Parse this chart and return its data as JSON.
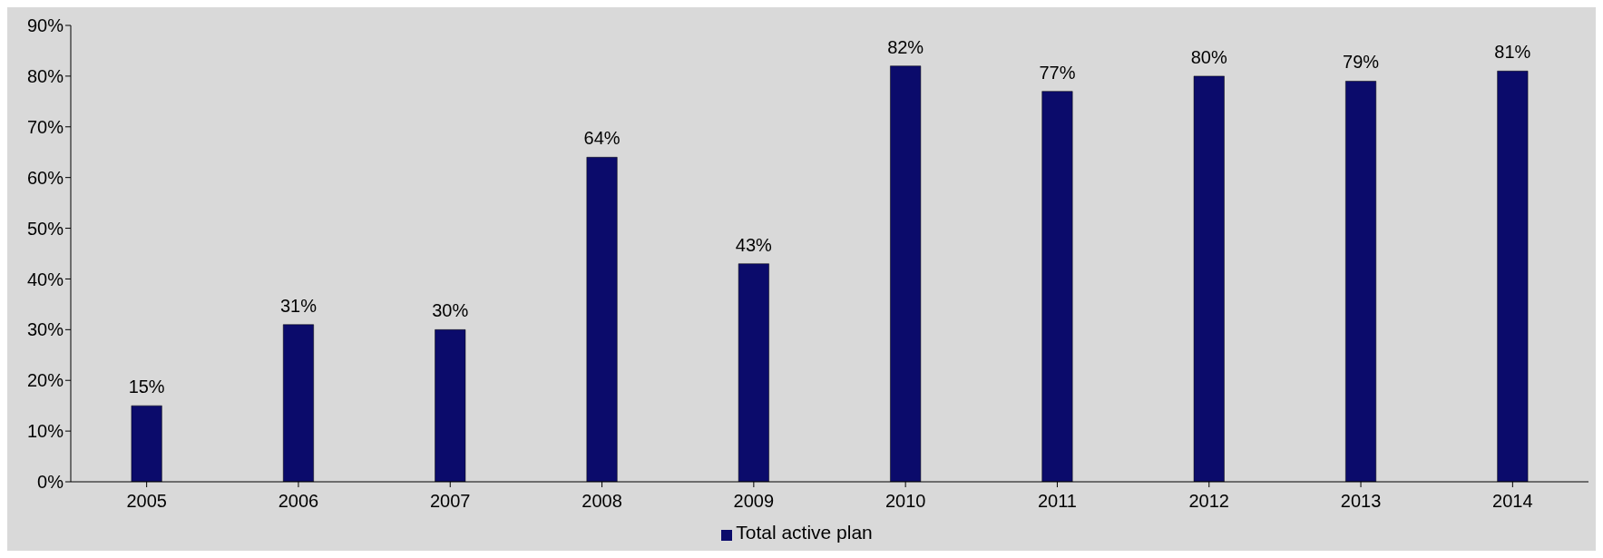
{
  "chart_data": {
    "type": "bar",
    "categories": [
      "2005",
      "2006",
      "2007",
      "2008",
      "2009",
      "2010",
      "2011",
      "2012",
      "2013",
      "2014"
    ],
    "series": [
      {
        "name": "Total active plan",
        "color": "#0b0b6b",
        "values": [
          15,
          31,
          30,
          64,
          43,
          82,
          77,
          80,
          79,
          81
        ],
        "value_labels": [
          "15%",
          "31%",
          "30%",
          "64%",
          "43%",
          "82%",
          "77%",
          "80%",
          "79%",
          "81%"
        ]
      }
    ],
    "ylim": [
      0,
      90
    ],
    "yticks": [
      {
        "value": 0,
        "label": "0%"
      },
      {
        "value": 10,
        "label": "10%"
      },
      {
        "value": 20,
        "label": "20%"
      },
      {
        "value": 30,
        "label": "30%"
      },
      {
        "value": 40,
        "label": "40%"
      },
      {
        "value": 50,
        "label": "50%"
      },
      {
        "value": 60,
        "label": "60%"
      },
      {
        "value": 70,
        "label": "70%"
      },
      {
        "value": 80,
        "label": "80%"
      },
      {
        "value": 90,
        "label": "90%"
      }
    ],
    "grid": false,
    "legend": "bottom"
  }
}
